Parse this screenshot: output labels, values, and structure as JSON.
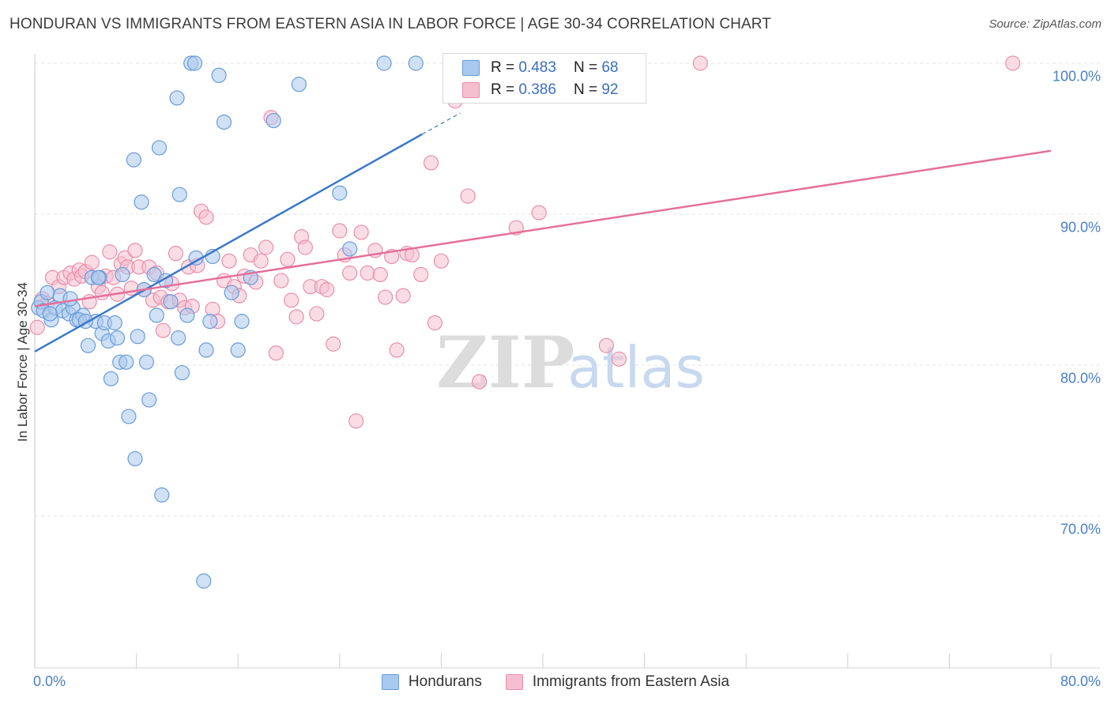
{
  "header": {
    "title": "HONDURAN VS IMMIGRANTS FROM EASTERN ASIA IN LABOR FORCE | AGE 30-34 CORRELATION CHART",
    "source": "Source: ZipAtlas.com"
  },
  "watermark": "ZIPatlas",
  "colors": {
    "blue_fill": "#a9c8ef",
    "blue_stroke": "#6a9bd8",
    "blue_line": "#3b78c8",
    "pink_fill": "#f6bfd0",
    "pink_stroke": "#e88fab",
    "pink_line": "#e4709a",
    "tick_text": "#4a7fc9",
    "grid": "#e3e3e3"
  },
  "legend": {
    "rows": [
      {
        "r_label": "R =",
        "r_value": "0.483",
        "n_label": "N =",
        "n_value": "68",
        "series": "blue"
      },
      {
        "r_label": "R =",
        "r_value": "0.386",
        "n_label": "N =",
        "n_value": "92",
        "series": "pink"
      }
    ]
  },
  "bottom_legend": [
    {
      "label": "Hondurans",
      "series": "blue"
    },
    {
      "label": "Immigrants from Eastern Asia",
      "series": "pink"
    }
  ],
  "chart_data": {
    "type": "scatter",
    "title": "HONDURAN VS IMMIGRANTS FROM EASTERN ASIA IN LABOR FORCE | AGE 30-34 CORRELATION CHART",
    "xlabel": "",
    "ylabel": "In Labor Force | Age 30-34",
    "xlim": [
      0,
      80
    ],
    "ylim": [
      60.5,
      101.5
    ],
    "x_tick_labels": [
      {
        "value": 0,
        "label": "0.0%"
      },
      {
        "value": 80,
        "label": "80.0%"
      }
    ],
    "y_tick_labels": [
      {
        "value": 100,
        "label": "100.0%"
      },
      {
        "value": 90,
        "label": "90.0%"
      },
      {
        "value": 80,
        "label": "80.0%"
      },
      {
        "value": 70,
        "label": "70.0%"
      }
    ],
    "series": [
      {
        "name": "Hondurans",
        "color": "blue",
        "R": 0.483,
        "N": 68,
        "trend": {
          "x": [
            0,
            30.5
          ],
          "y": [
            80.9,
            95.3
          ],
          "dashed_to": {
            "x": 33.5,
            "y": 96.7
          }
        },
        "points": [
          [
            0.3,
            83.8
          ],
          [
            0.5,
            84.2
          ],
          [
            0.7,
            83.6
          ],
          [
            1,
            84.8
          ],
          [
            1.3,
            83
          ],
          [
            1.6,
            83.8
          ],
          [
            2,
            84.6
          ],
          [
            2.2,
            83.6
          ],
          [
            2.7,
            83.4
          ],
          [
            3,
            83.8
          ],
          [
            3.3,
            83
          ],
          [
            3.8,
            83.3
          ],
          [
            4.2,
            81.3
          ],
          [
            4.5,
            85.8
          ],
          [
            4.8,
            82.9
          ],
          [
            5.1,
            85.8
          ],
          [
            5.3,
            82.1
          ],
          [
            5.5,
            82.8
          ],
          [
            5.8,
            81.6
          ],
          [
            6,
            79.1
          ],
          [
            6.3,
            82.8
          ],
          [
            6.5,
            81.8
          ],
          [
            6.7,
            80.2
          ],
          [
            6.9,
            86
          ],
          [
            7.2,
            80.2
          ],
          [
            7.4,
            76.6
          ],
          [
            7.8,
            93.6
          ],
          [
            7.9,
            73.8
          ],
          [
            8.1,
            81.9
          ],
          [
            8.4,
            90.8
          ],
          [
            8.6,
            85
          ],
          [
            9,
            77.7
          ],
          [
            9.4,
            86
          ],
          [
            9.6,
            83.3
          ],
          [
            9.8,
            94.4
          ],
          [
            10,
            71.4
          ],
          [
            10.3,
            85.6
          ],
          [
            10.7,
            84.2
          ],
          [
            11.2,
            97.7
          ],
          [
            11.3,
            81.8
          ],
          [
            11.4,
            91.3
          ],
          [
            11.6,
            79.5
          ],
          [
            12,
            83.3
          ],
          [
            12.3,
            100
          ],
          [
            12.6,
            100
          ],
          [
            12.7,
            87.1
          ],
          [
            13.3,
            65.7
          ],
          [
            13.5,
            81
          ],
          [
            13.8,
            82.9
          ],
          [
            14,
            87.2
          ],
          [
            14.5,
            99.2
          ],
          [
            14.9,
            96.1
          ],
          [
            15.5,
            84.8
          ],
          [
            16,
            81
          ],
          [
            16.3,
            82.9
          ],
          [
            17,
            85.8
          ],
          [
            18.8,
            96.2
          ],
          [
            20.8,
            98.6
          ],
          [
            24,
            91.4
          ],
          [
            24.8,
            87.7
          ],
          [
            27.5,
            100
          ],
          [
            30,
            100
          ],
          [
            2.8,
            84.4
          ],
          [
            3.5,
            83
          ],
          [
            4,
            82.9
          ],
          [
            5,
            85.8
          ],
          [
            8.8,
            80.2
          ],
          [
            1.2,
            83.4
          ]
        ]
      },
      {
        "name": "Immigrants from Eastern Asia",
        "color": "pink",
        "R": 0.386,
        "N": 92,
        "trend": {
          "x": [
            0,
            80
          ],
          "y": [
            83.9,
            94.2
          ]
        },
        "points": [
          [
            0.2,
            82.5
          ],
          [
            0.6,
            84.4
          ],
          [
            1,
            84.1
          ],
          [
            1.4,
            85.8
          ],
          [
            1.9,
            85.2
          ],
          [
            2.3,
            85.8
          ],
          [
            2.8,
            86.1
          ],
          [
            3.1,
            85.7
          ],
          [
            3.5,
            86.3
          ],
          [
            3.7,
            85.9
          ],
          [
            4,
            86.2
          ],
          [
            4.3,
            84.2
          ],
          [
            4.5,
            86.8
          ],
          [
            5,
            85.2
          ],
          [
            5.3,
            84.8
          ],
          [
            5.6,
            85.9
          ],
          [
            5.9,
            87.5
          ],
          [
            6.2,
            85.8
          ],
          [
            6.5,
            84.7
          ],
          [
            6.8,
            86.7
          ],
          [
            7.1,
            87.1
          ],
          [
            7.3,
            86.5
          ],
          [
            7.6,
            85.1
          ],
          [
            7.9,
            87.6
          ],
          [
            8.2,
            86.5
          ],
          [
            8.6,
            85
          ],
          [
            9,
            86.5
          ],
          [
            9.3,
            84.3
          ],
          [
            9.6,
            86.1
          ],
          [
            9.9,
            84.5
          ],
          [
            10.1,
            82.3
          ],
          [
            10.5,
            84.2
          ],
          [
            10.8,
            85.4
          ],
          [
            11.1,
            87.4
          ],
          [
            11.4,
            84.3
          ],
          [
            11.8,
            83.8
          ],
          [
            12.1,
            86.5
          ],
          [
            12.4,
            83.9
          ],
          [
            12.8,
            86.6
          ],
          [
            13.1,
            90.2
          ],
          [
            13.5,
            89.8
          ],
          [
            14,
            83.7
          ],
          [
            14.4,
            82.9
          ],
          [
            14.9,
            85.6
          ],
          [
            15.3,
            86.9
          ],
          [
            15.7,
            85.2
          ],
          [
            16.1,
            84.6
          ],
          [
            16.5,
            85.9
          ],
          [
            17,
            87.3
          ],
          [
            17.4,
            85.5
          ],
          [
            17.8,
            86.9
          ],
          [
            18.2,
            87.8
          ],
          [
            18.6,
            96.4
          ],
          [
            19,
            80.8
          ],
          [
            19.4,
            85.6
          ],
          [
            19.9,
            87
          ],
          [
            20.2,
            84.3
          ],
          [
            20.6,
            83.2
          ],
          [
            21,
            88.5
          ],
          [
            21.3,
            87.8
          ],
          [
            21.7,
            85.2
          ],
          [
            22.2,
            83.4
          ],
          [
            22.6,
            85.2
          ],
          [
            23,
            85
          ],
          [
            23.5,
            81.4
          ],
          [
            24,
            88.9
          ],
          [
            24.4,
            87.3
          ],
          [
            24.8,
            86.1
          ],
          [
            25.3,
            76.3
          ],
          [
            25.7,
            88.8
          ],
          [
            26.2,
            86.1
          ],
          [
            26.8,
            87.6
          ],
          [
            27.2,
            86
          ],
          [
            27.6,
            84.5
          ],
          [
            28.1,
            87.2
          ],
          [
            28.5,
            81
          ],
          [
            29,
            84.6
          ],
          [
            29.3,
            87.4
          ],
          [
            29.7,
            87.3
          ],
          [
            30.4,
            86
          ],
          [
            31.2,
            93.4
          ],
          [
            31.5,
            82.8
          ],
          [
            32,
            86.9
          ],
          [
            33.1,
            97.5
          ],
          [
            34.1,
            91.2
          ],
          [
            35,
            78.9
          ],
          [
            37.9,
            89.1
          ],
          [
            39.7,
            90.1
          ],
          [
            45,
            81.3
          ],
          [
            46,
            80.4
          ],
          [
            52.4,
            100
          ],
          [
            77,
            100
          ]
        ]
      }
    ]
  }
}
